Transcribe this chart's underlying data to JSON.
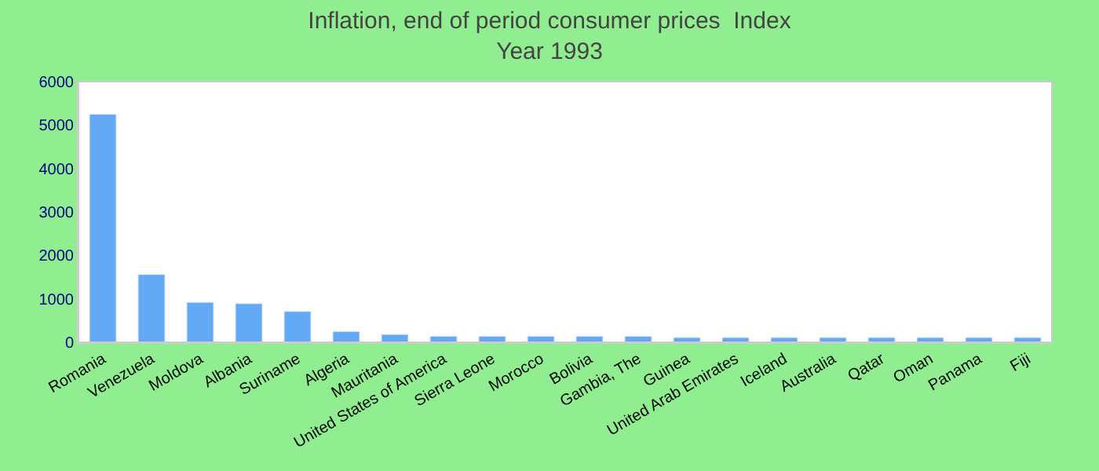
{
  "chart_data": {
    "type": "bar",
    "title": "Inflation, end of period consumer prices  Index",
    "subtitle": "Year 1993",
    "categories": [
      "Romania",
      "Venezuela",
      "Moldova",
      "Albania",
      "Suriname",
      "Algeria",
      "Mauritania",
      "United States of America",
      "Sierra Leone",
      "Morocco",
      "Bolivia",
      "Gambia, The",
      "Guinea",
      "United Arab Emirates",
      "Iceland",
      "Australia",
      "Qatar",
      "Oman",
      "Panama",
      "Fiji"
    ],
    "values": [
      5250,
      1560,
      920,
      890,
      710,
      250,
      180,
      140,
      140,
      140,
      140,
      140,
      110,
      110,
      110,
      110,
      110,
      110,
      110,
      110
    ],
    "color": "#63a9f5",
    "ylim": [
      0,
      6000
    ],
    "yticks": [
      0,
      1000,
      2000,
      3000,
      4000,
      5000,
      6000
    ]
  }
}
